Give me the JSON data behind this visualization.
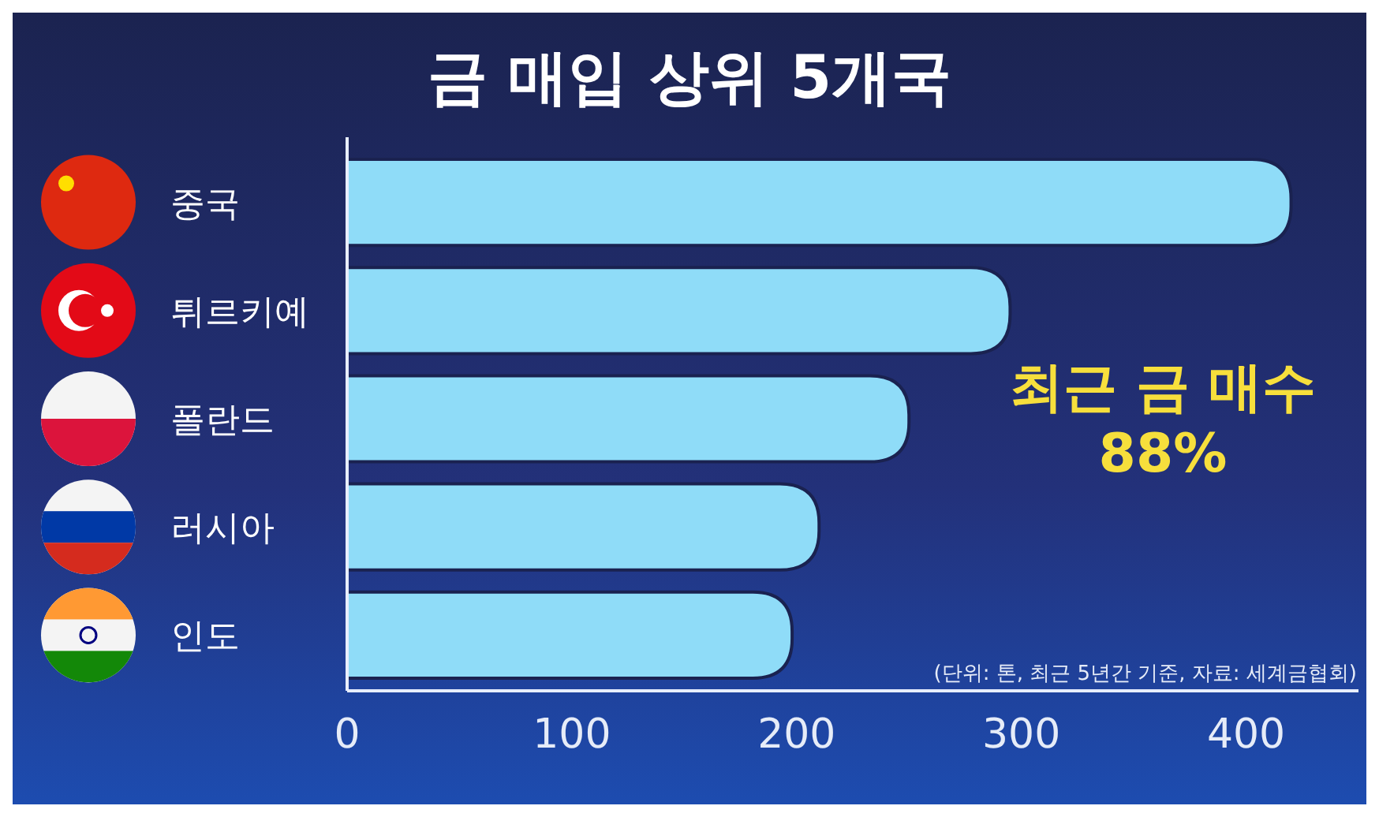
{
  "chart_data": {
    "type": "bar",
    "orientation": "horizontal",
    "title": "금 매입 상위 5개국",
    "categories": [
      "중국",
      "튀르키예",
      "폴란드",
      "러시아",
      "인도"
    ],
    "values": [
      420,
      295,
      250,
      210,
      198
    ],
    "color": "#8fdcf8",
    "xlim": [
      0,
      450
    ],
    "xticks": [
      0,
      100,
      200,
      300,
      400
    ],
    "grid": false,
    "annotations": [
      "최근 금 매수\n88%",
      "(단위: 톤, 최근 5년간 기준, 자료: 세계금협회)"
    ]
  }
}
